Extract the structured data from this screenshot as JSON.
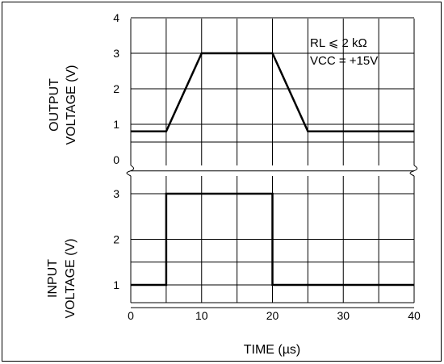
{
  "chart_data": {
    "type": "line",
    "xlabel": "TIME (µs)",
    "x_ticks": [
      "0",
      "10",
      "20",
      "30",
      "40"
    ],
    "xlim": [
      0,
      40
    ],
    "output_panel": {
      "ylabel_lines": [
        "OUTPUT",
        "VOLTAGE (V)"
      ],
      "y_ticks": [
        "0",
        "1",
        "2",
        "3",
        "4"
      ],
      "ylim": [
        0,
        4
      ],
      "annotation_lines": [
        "RL ⩽ 2 kΩ",
        "VCC = +15V"
      ],
      "series": [
        {
          "x": [
            0,
            5,
            10,
            20,
            25,
            40
          ],
          "y": [
            0.8,
            0.8,
            3.0,
            3.0,
            0.8,
            0.8
          ]
        }
      ]
    },
    "input_panel": {
      "ylabel_lines": [
        "INPUT",
        "VOLTAGE (V)"
      ],
      "y_ticks": [
        "1",
        "2",
        "3"
      ],
      "ylim": [
        0.5,
        3.5
      ],
      "series": [
        {
          "x": [
            0,
            5,
            5,
            20,
            20,
            40
          ],
          "y": [
            1,
            1,
            3,
            3,
            1,
            1
          ]
        }
      ]
    }
  }
}
